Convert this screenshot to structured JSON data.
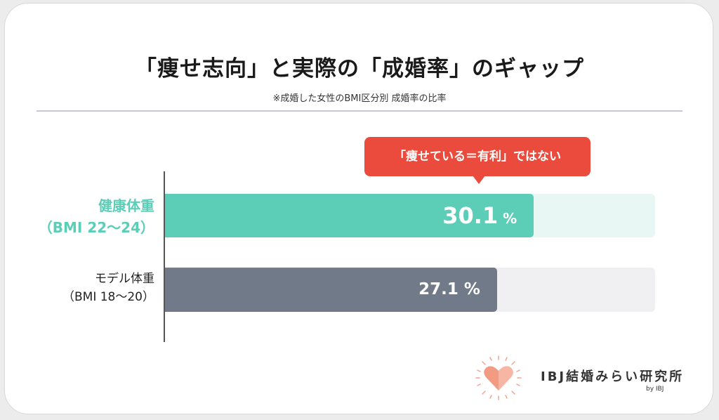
{
  "title": "「痩せ志向」と実際の「成婚率」のギャップ",
  "subtitle": "※成婚した女性のBMI区分別 成婚率の比率",
  "callout": "「痩せている＝有利」ではない",
  "colors": {
    "accent_green": "#5ccdb6",
    "track_green": "#e8f7f4",
    "bar_gray": "#707a88",
    "track_gray": "#f0f0f2",
    "callout_red": "#ea4b3c"
  },
  "chart_data": {
    "type": "bar",
    "orientation": "horizontal",
    "categories": [
      {
        "line1": "健康体重",
        "line2": "（BMI 22〜24）"
      },
      {
        "line1": "モデル体重",
        "line2": "（BMI 18〜20）"
      }
    ],
    "values": [
      30.1,
      27.1
    ],
    "value_labels": [
      "30.1",
      "27.1"
    ],
    "unit": "%",
    "ylim": [
      0,
      40
    ]
  },
  "logo": {
    "text": "IBJ結婚みらい研究所",
    "by": "by IBJ"
  }
}
